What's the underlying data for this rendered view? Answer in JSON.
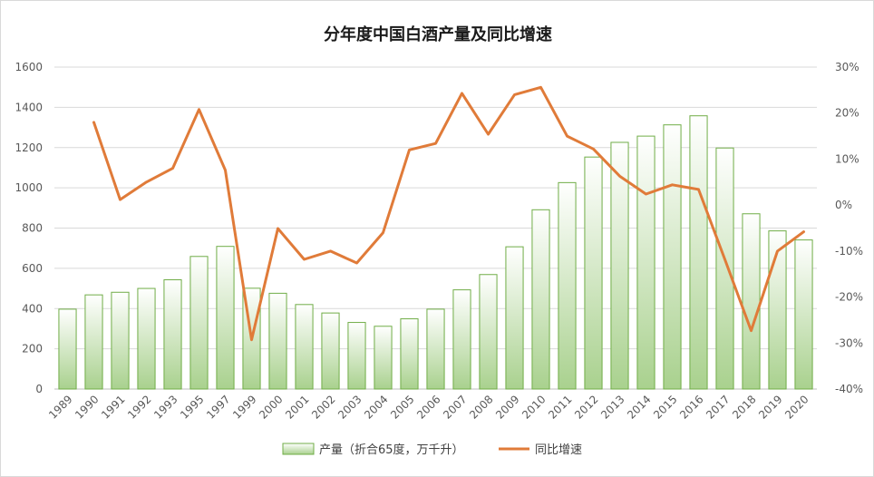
{
  "chart_data": {
    "type": "bar",
    "title": "分年度中国白酒产量及同比增速",
    "categories": [
      "1989",
      "1990",
      "1991",
      "1992",
      "1993",
      "1995",
      "1997",
      "1999",
      "2000",
      "2001",
      "2002",
      "2003",
      "2004",
      "2005",
      "2006",
      "2007",
      "2008",
      "2009",
      "2010",
      "2011",
      "2012",
      "2013",
      "2014",
      "2015",
      "2016",
      "2017",
      "2018",
      "2019",
      "2020"
    ],
    "series": [
      {
        "name": "产量（折合65度，万千升）",
        "type": "bar",
        "axis": "left",
        "color": "#70ad47",
        "values": [
          397,
          468,
          481,
          500,
          543,
          659,
          709,
          501,
          476,
          420,
          378,
          331,
          312,
          349,
          397,
          493,
          569,
          707,
          891,
          1026,
          1153,
          1226,
          1257,
          1313,
          1358,
          1198,
          871,
          786,
          741
        ]
      },
      {
        "name": "同比增速",
        "type": "line",
        "axis": "right",
        "color": "#e07b39",
        "values": [
          null,
          18.0,
          1.2,
          5.0,
          8.0,
          20.8,
          7.6,
          -29.3,
          -5.1,
          -11.8,
          -10.0,
          -12.6,
          -6.0,
          12.0,
          13.4,
          24.3,
          15.4,
          24.0,
          25.6,
          15.0,
          12.2,
          6.3,
          2.4,
          4.4,
          3.4,
          -11.8,
          -27.3,
          -10.0,
          -5.8
        ]
      }
    ],
    "y_left": {
      "min": 0,
      "max": 1600,
      "step": 200,
      "ticks": [
        "0",
        "200",
        "400",
        "600",
        "800",
        "1000",
        "1200",
        "1400",
        "1600"
      ]
    },
    "y_right": {
      "min": -40,
      "max": 30,
      "step": 10,
      "ticks": [
        "-40%",
        "-30%",
        "-20%",
        "-10%",
        "0%",
        "10%",
        "20%",
        "30%"
      ]
    },
    "grid": true,
    "legend_position": "bottom"
  },
  "legend": {
    "bar_label": "产量（折合65度，万千升）",
    "line_label": "同比增速"
  },
  "colors": {
    "bar_fill_top": "#ffffff",
    "bar_fill_bottom": "#a9d18e",
    "bar_stroke": "#70ad47",
    "line": "#e07b39",
    "grid": "#d9d9d9",
    "axis_text": "#595959"
  }
}
